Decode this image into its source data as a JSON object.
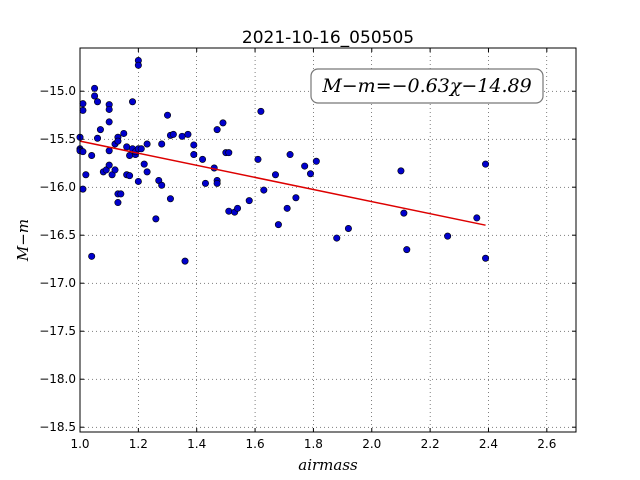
{
  "chart_data": {
    "type": "scatter",
    "title": "2021-10-16_050505",
    "xlabel": "airmass",
    "ylabel": "M−m",
    "xlim": [
      1.0,
      2.7
    ],
    "ylim": [
      -18.55,
      -14.55
    ],
    "xticks": [
      1.0,
      1.2,
      1.4,
      1.6,
      1.8,
      2.0,
      2.2,
      2.4,
      2.6
    ],
    "xtick_labels": [
      "1.0",
      "1.2",
      "1.4",
      "1.6",
      "1.8",
      "2.0",
      "2.2",
      "2.4",
      "2.6"
    ],
    "yticks": [
      -15.0,
      -15.5,
      -16.0,
      -16.5,
      -17.0,
      -17.5,
      -18.0,
      -18.5
    ],
    "ytick_labels": [
      "−15.0",
      "−15.5",
      "−16.0",
      "−16.5",
      "−17.0",
      "−17.5",
      "−18.0",
      "−18.5"
    ],
    "grid": true,
    "annotation": "M−m=−0.63χ−14.89",
    "colors": {
      "points": "#0000cc",
      "fit": "#dd0000"
    },
    "fit": {
      "slope": -0.63,
      "intercept": -14.89,
      "x_range": [
        1.0,
        2.39
      ]
    },
    "points": [
      [
        1.0,
        -15.48
      ],
      [
        1.0,
        -15.6
      ],
      [
        1.0,
        -15.62
      ],
      [
        1.01,
        -15.63
      ],
      [
        1.01,
        -15.2
      ],
      [
        1.01,
        -15.13
      ],
      [
        1.01,
        -16.02
      ],
      [
        1.02,
        -15.87
      ],
      [
        1.04,
        -15.67
      ],
      [
        1.04,
        -16.72
      ],
      [
        1.05,
        -14.97
      ],
      [
        1.05,
        -15.05
      ],
      [
        1.06,
        -15.11
      ],
      [
        1.06,
        -15.49
      ],
      [
        1.07,
        -15.4
      ],
      [
        1.08,
        -15.84
      ],
      [
        1.09,
        -15.82
      ],
      [
        1.1,
        -15.14
      ],
      [
        1.1,
        -15.19
      ],
      [
        1.1,
        -15.32
      ],
      [
        1.1,
        -15.62
      ],
      [
        1.1,
        -15.77
      ],
      [
        1.11,
        -15.87
      ],
      [
        1.12,
        -15.82
      ],
      [
        1.12,
        -15.55
      ],
      [
        1.13,
        -15.48
      ],
      [
        1.13,
        -15.52
      ],
      [
        1.13,
        -16.07
      ],
      [
        1.13,
        -16.16
      ],
      [
        1.14,
        -16.07
      ],
      [
        1.15,
        -15.44
      ],
      [
        1.16,
        -15.58
      ],
      [
        1.16,
        -15.87
      ],
      [
        1.17,
        -15.88
      ],
      [
        1.17,
        -15.67
      ],
      [
        1.18,
        -15.11
      ],
      [
        1.18,
        -15.6
      ],
      [
        1.19,
        -15.66
      ],
      [
        1.19,
        -15.63
      ],
      [
        1.2,
        -15.94
      ],
      [
        1.2,
        -15.6
      ],
      [
        1.2,
        -14.68
      ],
      [
        1.2,
        -14.73
      ],
      [
        1.21,
        -15.6
      ],
      [
        1.22,
        -15.76
      ],
      [
        1.23,
        -15.55
      ],
      [
        1.23,
        -15.84
      ],
      [
        1.26,
        -16.33
      ],
      [
        1.27,
        -15.93
      ],
      [
        1.28,
        -15.55
      ],
      [
        1.28,
        -15.98
      ],
      [
        1.3,
        -15.25
      ],
      [
        1.31,
        -16.12
      ],
      [
        1.31,
        -15.46
      ],
      [
        1.32,
        -15.45
      ],
      [
        1.35,
        -15.47
      ],
      [
        1.36,
        -16.77
      ],
      [
        1.37,
        -15.45
      ],
      [
        1.39,
        -15.56
      ],
      [
        1.39,
        -15.66
      ],
      [
        1.42,
        -15.71
      ],
      [
        1.43,
        -15.96
      ],
      [
        1.46,
        -15.8
      ],
      [
        1.47,
        -15.4
      ],
      [
        1.47,
        -15.93
      ],
      [
        1.47,
        -15.96
      ],
      [
        1.49,
        -15.33
      ],
      [
        1.5,
        -15.64
      ],
      [
        1.51,
        -15.64
      ],
      [
        1.51,
        -16.25
      ],
      [
        1.53,
        -16.26
      ],
      [
        1.54,
        -16.22
      ],
      [
        1.58,
        -16.14
      ],
      [
        1.61,
        -15.71
      ],
      [
        1.62,
        -15.21
      ],
      [
        1.63,
        -16.03
      ],
      [
        1.67,
        -15.87
      ],
      [
        1.68,
        -16.39
      ],
      [
        1.71,
        -16.22
      ],
      [
        1.72,
        -15.66
      ],
      [
        1.74,
        -16.11
      ],
      [
        1.77,
        -15.78
      ],
      [
        1.79,
        -15.86
      ],
      [
        1.81,
        -15.73
      ],
      [
        1.88,
        -16.53
      ],
      [
        1.92,
        -16.43
      ],
      [
        2.1,
        -15.83
      ],
      [
        2.11,
        -16.27
      ],
      [
        2.12,
        -16.65
      ],
      [
        2.26,
        -16.51
      ],
      [
        2.36,
        -16.32
      ],
      [
        2.39,
        -15.76
      ],
      [
        2.39,
        -16.74
      ]
    ]
  }
}
